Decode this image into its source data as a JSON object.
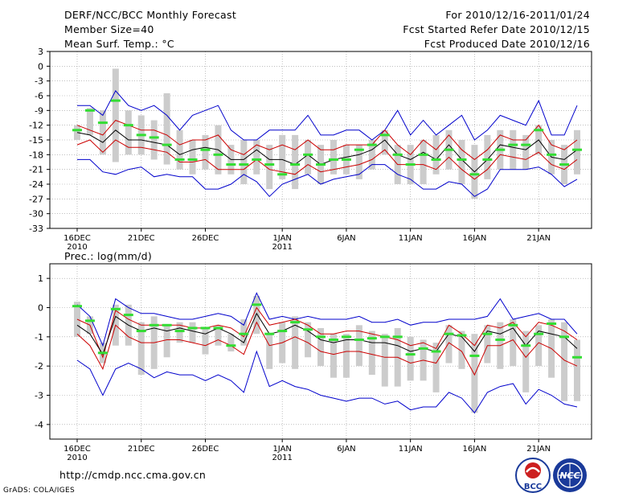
{
  "header": {
    "title": "DERF/NCC/BCC Monthly Forecast",
    "member_size": "Member Size=40",
    "variable": "Mean Surf. Temp.: °C",
    "period": "For 2010/12/16-2011/01/24",
    "fcst_started": "Fcst Started Refer Date 2010/12/15",
    "fcst_produced": "Fcst Produced Date 2010/12/16"
  },
  "footer": {
    "url": "http://cmdp.ncc.cma.gov.cn",
    "grads": "GrADS: COLA/IGES",
    "logo_left_text": "BCC",
    "logo_right_text": "NCC"
  },
  "colors": {
    "max_min": "#0000cc",
    "spread": "#cc0000",
    "mean": "#000000",
    "obs": "#33dd33",
    "box": "#cccccc"
  },
  "chart_data": [
    {
      "type": "line",
      "title": "Mean Surf. Temp.: °C",
      "ylim": [
        -33,
        3
      ],
      "yticks": [
        3,
        0,
        -3,
        -6,
        -9,
        -12,
        -15,
        -18,
        -21,
        -24,
        -27,
        -30,
        -33
      ],
      "xlim": [
        1,
        40
      ],
      "xticks": [
        {
          "day": 1,
          "label": "16DEC",
          "sub": "2010"
        },
        {
          "day": 6,
          "label": "21DEC"
        },
        {
          "day": 11,
          "label": "26DEC"
        },
        {
          "day": 17,
          "label": "1JAN",
          "sub": "2011"
        },
        {
          "day": 22,
          "label": "6JAN"
        },
        {
          "day": 27,
          "label": "11JAN"
        },
        {
          "day": 32,
          "label": "16JAN"
        },
        {
          "day": 37,
          "label": "21JAN"
        }
      ],
      "series": [
        {
          "name": "max",
          "values": [
            -8,
            -8,
            -10,
            -5,
            -8,
            -9,
            -8,
            -10,
            -13,
            -10,
            -9,
            -8,
            -13,
            -15,
            -15,
            -13,
            -13,
            -13,
            -10,
            -14,
            -14,
            -13,
            -13,
            -15,
            -13,
            -9,
            -14,
            -11,
            -14,
            -12,
            -10,
            -15,
            -13,
            -10,
            -11,
            -12,
            -7,
            -14,
            -14,
            -8
          ]
        },
        {
          "name": "spread_upper",
          "values": [
            -12,
            -13,
            -14,
            -11,
            -12,
            -13,
            -13,
            -14,
            -16,
            -15,
            -15,
            -14,
            -17,
            -18,
            -16,
            -17,
            -16,
            -17,
            -15,
            -17,
            -17,
            -16,
            -16,
            -16,
            -13,
            -16,
            -18,
            -15,
            -17,
            -14,
            -17,
            -19,
            -17,
            -14,
            -15,
            -15,
            -12,
            -16,
            -17,
            -15
          ]
        },
        {
          "name": "mean",
          "values": [
            -13.5,
            -14,
            -15.5,
            -13,
            -15,
            -15,
            -15.5,
            -16,
            -18,
            -17,
            -16.5,
            -17,
            -19,
            -19,
            -17,
            -19,
            -19,
            -20,
            -18,
            -20,
            -19,
            -18.5,
            -18,
            -17,
            -15,
            -18,
            -19,
            -17.5,
            -19,
            -16,
            -19,
            -21.5,
            -19,
            -16,
            -16.5,
            -17,
            -15,
            -18.5,
            -19,
            -17
          ]
        },
        {
          "name": "spread_lower",
          "values": [
            -16,
            -15,
            -17.5,
            -15,
            -16.5,
            -16.5,
            -17,
            -17.5,
            -19.5,
            -19.5,
            -19,
            -21,
            -21,
            -21,
            -19,
            -21,
            -21.5,
            -22,
            -20,
            -21.5,
            -21,
            -20.5,
            -20,
            -19,
            -17,
            -20,
            -20,
            -20,
            -21,
            -18.5,
            -21,
            -23,
            -21,
            -18,
            -18.5,
            -19,
            -17.5,
            -20,
            -21,
            -19
          ]
        },
        {
          "name": "min",
          "values": [
            -19,
            -19,
            -21.5,
            -22,
            -21,
            -20.5,
            -22.5,
            -22,
            -22.5,
            -22.5,
            -25,
            -25,
            -24,
            -22,
            -23.5,
            -26.5,
            -24,
            -23,
            -22,
            -24,
            -23,
            -22.5,
            -22,
            -20,
            -20,
            -22,
            -23,
            -25,
            -25,
            -23.5,
            -24,
            -26.5,
            -25,
            -21,
            -21,
            -21,
            -20.5,
            -22,
            -24.5,
            -23
          ]
        },
        {
          "name": "obs",
          "values": [
            -13,
            -9,
            -11.5,
            -7,
            -12,
            -14,
            -14.5,
            -16,
            -19,
            -19,
            -17,
            -18,
            -20,
            -20,
            -19,
            -20,
            -22,
            -20,
            -18,
            -20,
            -19,
            -19,
            -17,
            -16,
            -14,
            -18,
            -20,
            -18,
            -19,
            -17,
            -19,
            -22,
            -19,
            -17,
            -16,
            -16,
            -13,
            -18,
            -20,
            -17
          ]
        },
        {
          "name": "box_top",
          "values": [
            -12,
            -8.5,
            -9,
            -0.5,
            -9,
            -10,
            -11,
            -5.5,
            -13,
            -15,
            -14,
            -12,
            -16,
            -15,
            -15,
            -16,
            -14,
            -14,
            -15,
            -16,
            -15,
            -16,
            -16,
            -15,
            -13,
            -16,
            -16,
            -15,
            -14,
            -13,
            -15,
            -16,
            -14,
            -13,
            -13,
            -14,
            -12,
            -15,
            -16,
            -13
          ]
        },
        {
          "name": "box_bottom",
          "values": [
            -15,
            -14,
            -18,
            -19.5,
            -18,
            -18,
            -19,
            -20,
            -21,
            -22,
            -21,
            -22,
            -22,
            -24,
            -22,
            -25,
            -23,
            -25,
            -22,
            -24,
            -22,
            -22,
            -23,
            -21,
            -18,
            -24,
            -24,
            -24,
            -22,
            -21,
            -24,
            -27,
            -23,
            -21,
            -21,
            -21,
            -18,
            -22,
            -24,
            -22
          ]
        }
      ]
    },
    {
      "type": "line",
      "title": "Prec.: log(mm/d)",
      "ylim": [
        -4.5,
        1.5
      ],
      "yticks": [
        1,
        0,
        -1,
        -2,
        -3,
        -4
      ],
      "xlim": [
        1,
        40
      ],
      "xticks": [
        {
          "day": 1,
          "label": "16DEC",
          "sub": "2010"
        },
        {
          "day": 6,
          "label": "21DEC"
        },
        {
          "day": 11,
          "label": "26DEC"
        },
        {
          "day": 17,
          "label": "1JAN",
          "sub": "2011"
        },
        {
          "day": 22,
          "label": "6JAN"
        },
        {
          "day": 27,
          "label": "11JAN"
        },
        {
          "day": 32,
          "label": "16JAN"
        },
        {
          "day": 37,
          "label": "21JAN"
        }
      ],
      "series": [
        {
          "name": "max",
          "values": [
            0.1,
            -0.3,
            -1.3,
            0.3,
            0,
            -0.2,
            -0.2,
            -0.3,
            -0.4,
            -0.4,
            -0.3,
            -0.2,
            -0.3,
            -0.6,
            0.5,
            -0.4,
            -0.3,
            -0.4,
            -0.3,
            -0.4,
            -0.4,
            -0.4,
            -0.3,
            -0.5,
            -0.5,
            -0.4,
            -0.6,
            -0.5,
            -0.5,
            -0.4,
            -0.4,
            -0.4,
            -0.3,
            0.3,
            -0.4,
            -0.3,
            -0.2,
            -0.4,
            -0.4,
            -0.9
          ]
        },
        {
          "name": "spread_upper",
          "values": [
            -0.4,
            -0.6,
            -1.7,
            -0.1,
            -0.4,
            -0.6,
            -0.6,
            -0.6,
            -0.6,
            -0.7,
            -0.7,
            -0.6,
            -0.7,
            -1.0,
            0,
            -0.6,
            -0.5,
            -0.4,
            -0.6,
            -0.9,
            -0.9,
            -0.8,
            -0.8,
            -0.9,
            -1.0,
            -1.1,
            -1.3,
            -1.2,
            -1.4,
            -0.6,
            -0.9,
            -1.3,
            -0.6,
            -0.7,
            -0.5,
            -1.0,
            -0.5,
            -0.6,
            -0.8,
            -1.1
          ]
        },
        {
          "name": "mean",
          "values": [
            -0.6,
            -0.9,
            -1.6,
            -0.3,
            -0.6,
            -0.8,
            -0.7,
            -0.8,
            -0.7,
            -0.8,
            -0.9,
            -0.7,
            -0.9,
            -1.2,
            -0.2,
            -0.9,
            -0.8,
            -0.6,
            -0.8,
            -1.1,
            -1.2,
            -1.1,
            -1.1,
            -1.2,
            -1.2,
            -1.3,
            -1.5,
            -1.4,
            -1.5,
            -0.9,
            -1.0,
            -1.5,
            -0.8,
            -0.9,
            -0.7,
            -1.3,
            -0.8,
            -0.9,
            -1.0,
            -1.4
          ]
        },
        {
          "name": "spread_lower",
          "values": [
            -0.9,
            -1.3,
            -2.1,
            -0.6,
            -1.0,
            -1.2,
            -1.2,
            -1.1,
            -1.1,
            -1.2,
            -1.3,
            -1.1,
            -1.3,
            -1.6,
            -0.5,
            -1.3,
            -1.2,
            -1.0,
            -1.2,
            -1.5,
            -1.6,
            -1.5,
            -1.5,
            -1.6,
            -1.7,
            -1.7,
            -1.9,
            -1.8,
            -1.9,
            -1.2,
            -1.5,
            -2.3,
            -1.3,
            -1.3,
            -1.1,
            -1.7,
            -1.2,
            -1.4,
            -1.8,
            -2.0
          ]
        },
        {
          "name": "min",
          "values": [
            -1.8,
            -2.1,
            -3.0,
            -2.1,
            -1.9,
            -2.1,
            -2.4,
            -2.2,
            -2.3,
            -2.3,
            -2.5,
            -2.3,
            -2.5,
            -2.9,
            -1.5,
            -2.7,
            -2.5,
            -2.7,
            -2.8,
            -3.0,
            -3.1,
            -3.2,
            -3.1,
            -3.1,
            -3.3,
            -3.2,
            -3.5,
            -3.4,
            -3.4,
            -2.9,
            -3.1,
            -3.6,
            -2.9,
            -2.7,
            -2.6,
            -3.3,
            -2.8,
            -3.0,
            -3.3,
            -3.4
          ]
        },
        {
          "name": "obs",
          "values": [
            0.05,
            -0.45,
            -1.55,
            -0.05,
            -0.25,
            -0.8,
            -0.6,
            -0.6,
            -0.8,
            -0.7,
            -0.7,
            -0.7,
            -1.3,
            -0.9,
            0.1,
            -0.9,
            -0.8,
            -0.5,
            -0.75,
            -1.0,
            -1.1,
            -1.0,
            -1.1,
            -1.05,
            -1.0,
            -1.0,
            -1.6,
            -1.4,
            -1.5,
            -0.9,
            -0.95,
            -1.65,
            -0.9,
            -1.1,
            -0.6,
            -1.3,
            -0.9,
            -0.55,
            -1.0,
            -1.7
          ]
        },
        {
          "name": "box_top",
          "values": [
            0.2,
            -0.3,
            -1.2,
            0.1,
            0.1,
            -0.5,
            -0.3,
            -0.6,
            -0.5,
            -0.5,
            -0.7,
            -0.6,
            -0.9,
            -0.4,
            0.4,
            -0.9,
            -0.5,
            -0.3,
            -0.5,
            -0.7,
            -0.9,
            -0.9,
            -0.6,
            -0.8,
            -0.9,
            -0.7,
            -1.0,
            -1.1,
            -1.2,
            -0.6,
            -0.8,
            -0.9,
            -0.6,
            -0.5,
            -0.4,
            -0.8,
            -0.6,
            -0.4,
            -0.5,
            -1.1
          ]
        },
        {
          "name": "box_bottom",
          "values": [
            -1.0,
            -0.9,
            -1.9,
            -1.3,
            -1.3,
            -2.3,
            -2.1,
            -1.7,
            -1.2,
            -1.2,
            -1.6,
            -1.3,
            -1.5,
            -1.3,
            -0.9,
            -2.1,
            -1.9,
            -2.1,
            -1.7,
            -2.0,
            -2.4,
            -2.4,
            -2.0,
            -2.3,
            -2.7,
            -2.7,
            -2.5,
            -2.5,
            -2.9,
            -1.9,
            -2.1,
            -3.6,
            -1.9,
            -2.1,
            -2.0,
            -2.9,
            -2.0,
            -2.4,
            -3.2,
            -3.2
          ]
        }
      ]
    }
  ]
}
